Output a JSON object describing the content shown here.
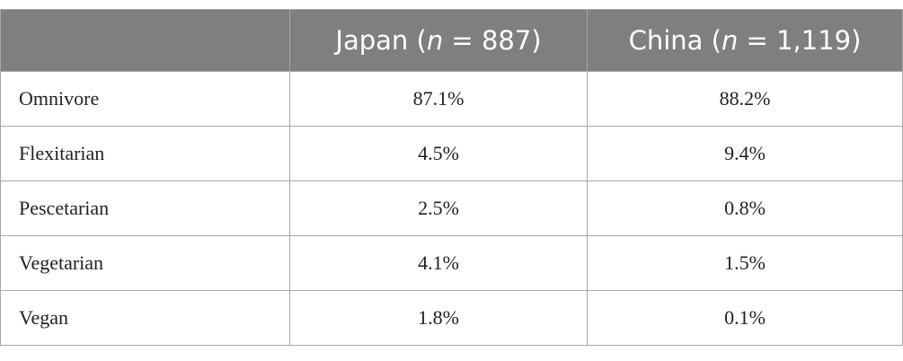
{
  "table": {
    "header": [
      [],
      [
        "Japan (",
        "n",
        " = 887)"
      ],
      [
        "China (",
        "n",
        " = 1,119)"
      ]
    ],
    "rows": [
      [
        "Omnivore",
        "87.1%",
        "88.2%"
      ],
      [
        "Flexitarian",
        "4.5%",
        "9.4%"
      ],
      [
        "Pescetarian",
        "2.5%",
        "0.8%"
      ],
      [
        "Vegetarian",
        "4.1%",
        "1.5%"
      ],
      [
        "Vegan",
        "1.8%",
        "0.1%"
      ]
    ]
  }
}
